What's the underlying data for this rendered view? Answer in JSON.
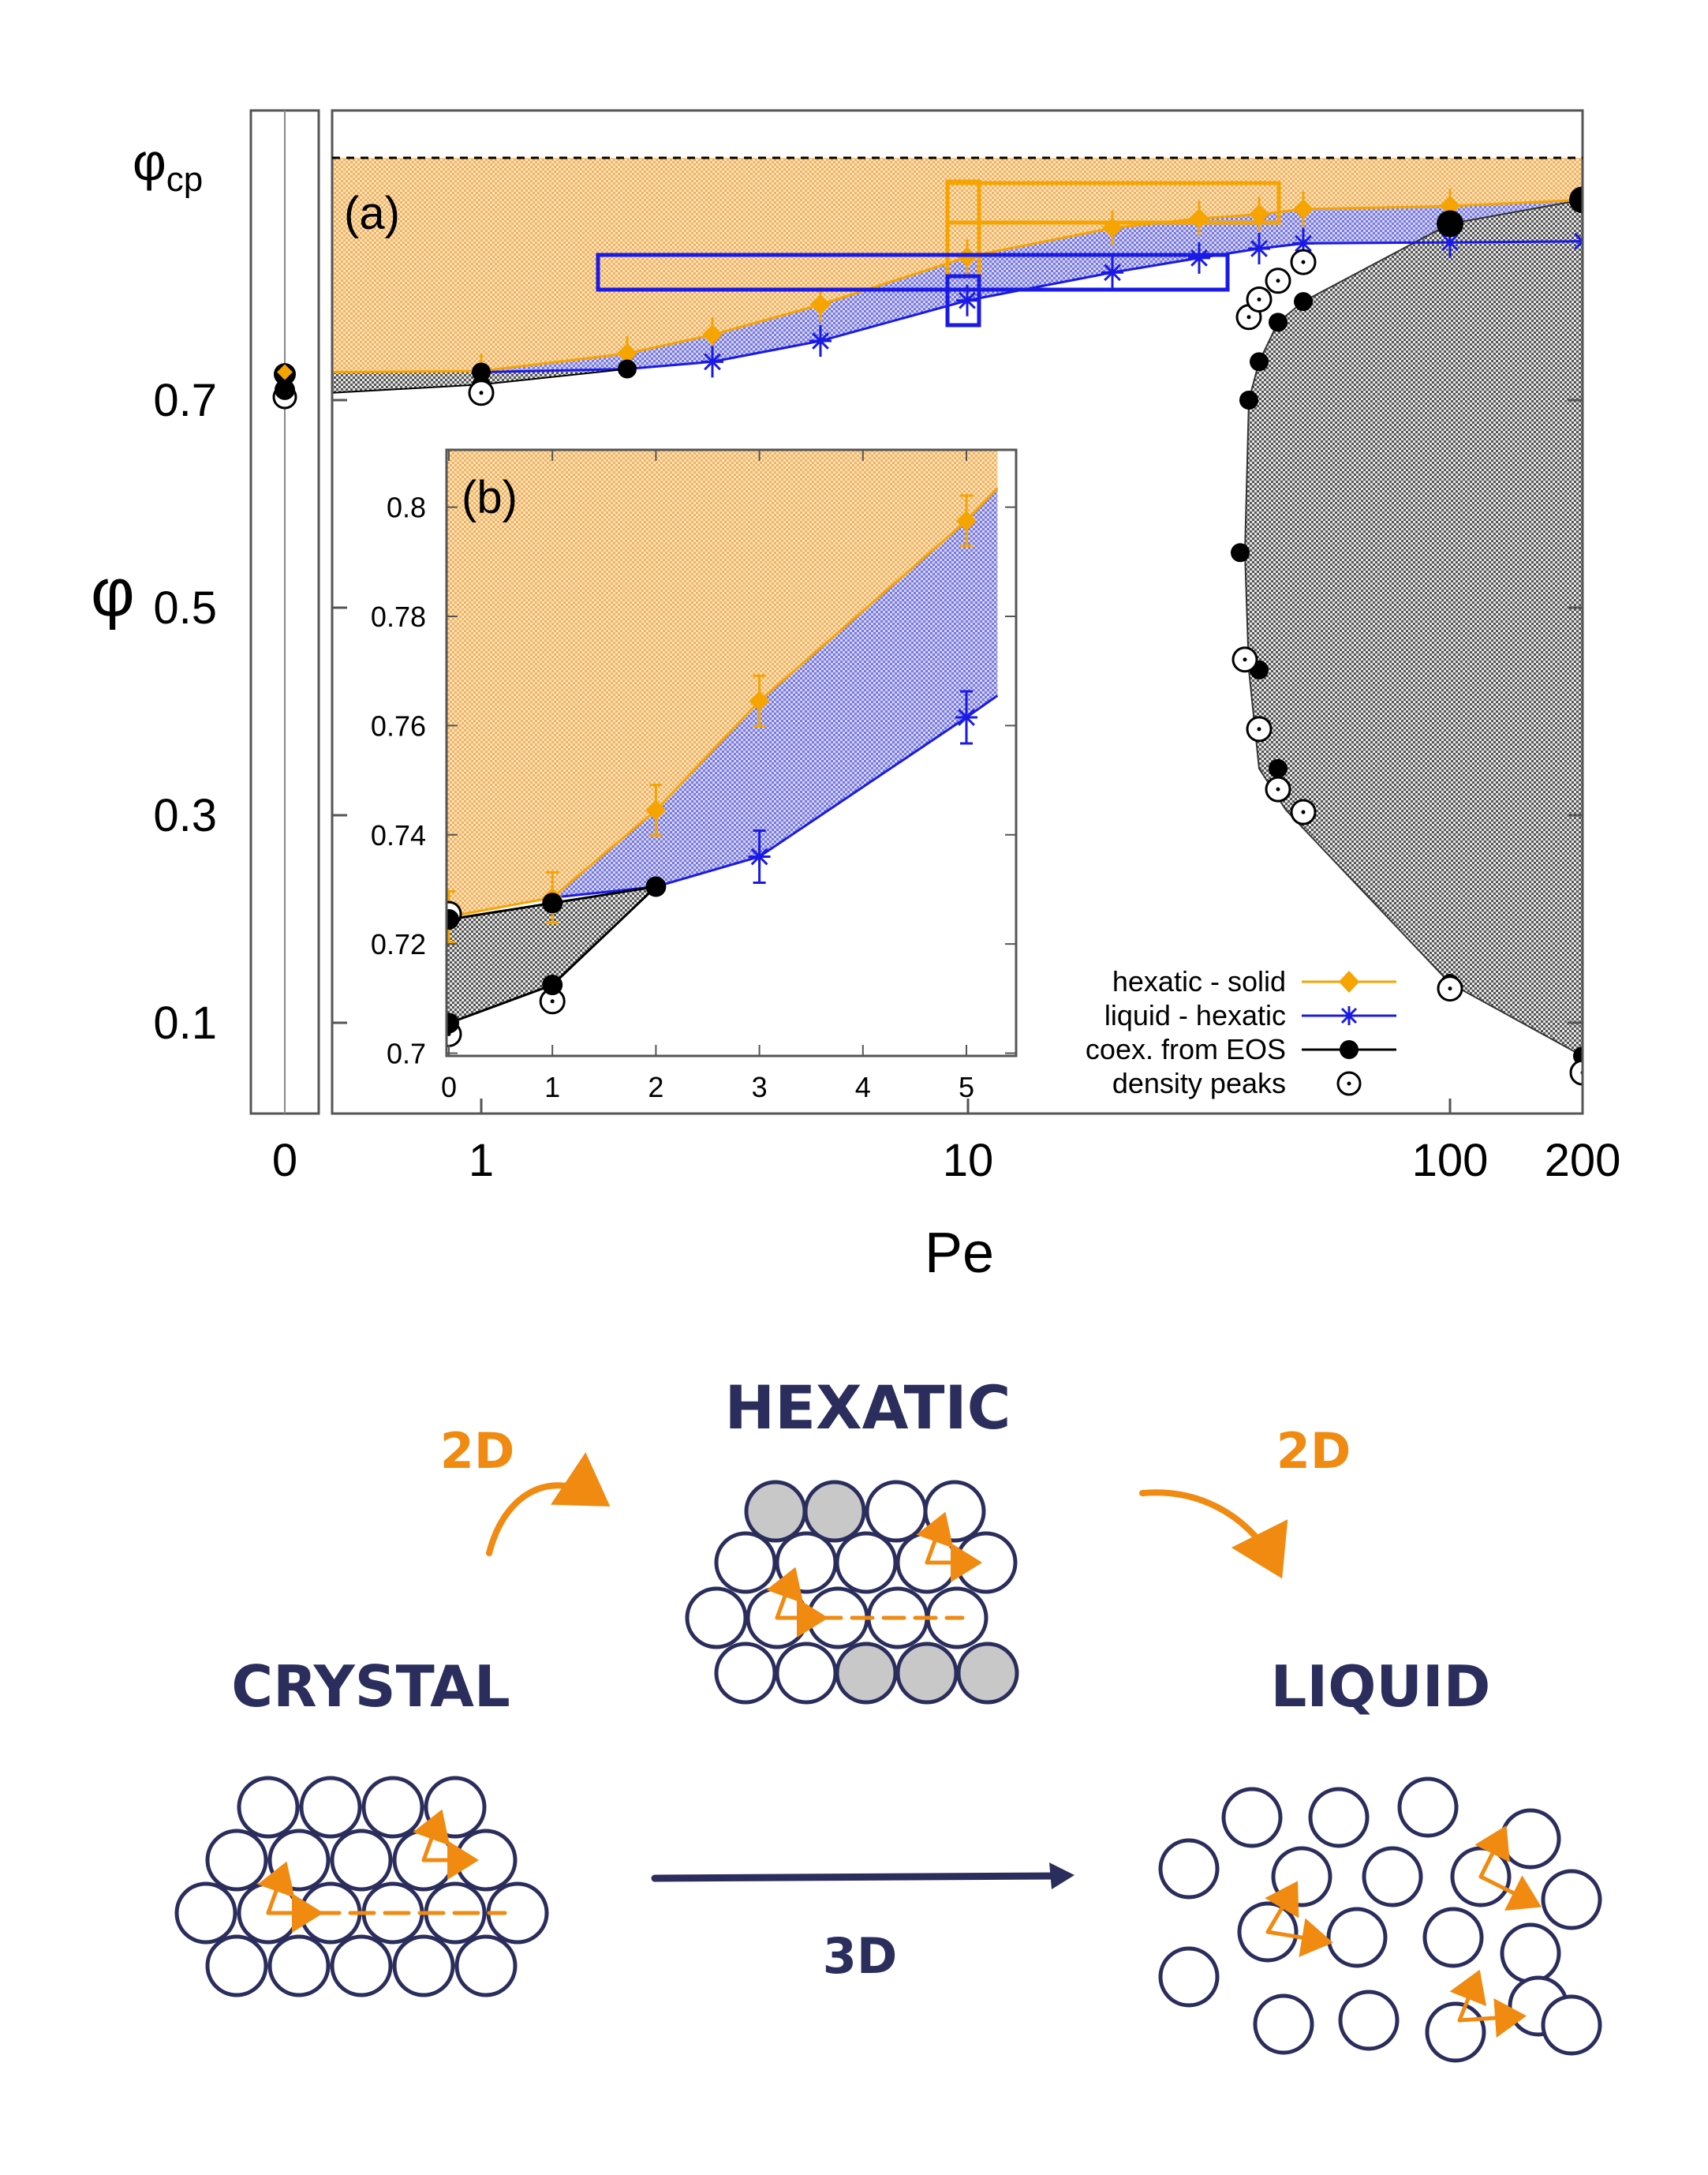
{
  "chart_data": [
    {
      "type": "scatter",
      "panel_label": "(a)",
      "xlabel": "Pe",
      "ylabel": "φ",
      "x_scale": "log (separate panel for Pe = 0)",
      "x_ticks": [
        "0",
        "1",
        "10",
        "100",
        "200"
      ],
      "y_ticks": [
        "0.1",
        "0.3",
        "0.5",
        "0.7"
      ],
      "y_top_label": "φcp",
      "phi_cp": 0.9069,
      "ylim": [
        0.0,
        0.93
      ],
      "grid": false,
      "series": [
        {
          "name": "hexatic - solid",
          "color": "#f5a400",
          "marker": "diamond",
          "x": [
            0,
            1,
            2,
            3,
            5,
            10,
            20,
            30,
            40,
            50,
            100,
            200
          ],
          "y": [
            0.725,
            0.728,
            0.745,
            0.763,
            0.792,
            0.838,
            0.866,
            0.875,
            0.879,
            0.884,
            0.887,
            0.893
          ]
        },
        {
          "name": "liquid - hexatic",
          "color": "#1a1ae6",
          "marker": "star",
          "x": [
            3,
            5,
            10,
            20,
            30,
            40,
            50,
            100,
            200
          ],
          "y": [
            0.737,
            0.757,
            0.796,
            0.823,
            0.837,
            0.846,
            0.851,
            0.852,
            0.853
          ]
        },
        {
          "name": "coex. from EOS",
          "color": "#000000",
          "marker": "filled-circle",
          "x": [
            0,
            0,
            1,
            1,
            2,
            40,
            38,
            37,
            37,
            40,
            40,
            45,
            50,
            100,
            200,
            40,
            38,
            40,
            45,
            50,
            100,
            200
          ],
          "y": [
            0.725,
            0.705,
            0.727,
            0.714,
            0.73,
            0.737,
            0.7,
            0.553,
            0.44,
            0.345,
            0.305,
            0.775,
            0.795,
            0.87,
            0.893,
            0.737,
            0.7,
            0.44,
            0.345,
            0.305,
            0.138,
            0.068
          ]
        },
        {
          "name": "density peaks",
          "color": "#000000",
          "marker": "open-circle-dot",
          "x": [
            0,
            1,
            37,
            38,
            38,
            40,
            45,
            45,
            50,
            100,
            200
          ],
          "y": [
            0.703,
            0.707,
            0.778,
            0.795,
            0.815,
            0.45,
            0.383,
            0.325,
            0.303,
            0.133,
            0.052
          ]
        }
      ],
      "regions": [
        {
          "name": "hexatic - solid coexistence",
          "color": "#f5b560"
        },
        {
          "name": "liquid - hexatic coexistence",
          "color": "#8080e8"
        },
        {
          "name": "coexistence from EOS (MIPS)",
          "color": "#777777"
        }
      ]
    },
    {
      "type": "scatter",
      "panel_label": "(b)",
      "x_ticks": [
        "0",
        "1",
        "2",
        "3",
        "4",
        "5"
      ],
      "y_ticks": [
        "0.7",
        "0.72",
        "0.74",
        "0.76",
        "0.78",
        "0.8"
      ],
      "xlim": [
        -0.2,
        5.1
      ],
      "ylim": [
        0.6995,
        0.8105
      ],
      "series": [
        {
          "name": "hexatic - solid",
          "x": [
            0,
            1,
            2,
            3,
            5
          ],
          "y": [
            0.725,
            0.7285,
            0.7445,
            0.7645,
            0.7975
          ]
        },
        {
          "name": "liquid - hexatic",
          "x": [
            3,
            5
          ],
          "y": [
            0.736,
            0.7615
          ]
        },
        {
          "name": "coex. from EOS",
          "x": [
            0,
            0,
            1,
            1,
            2
          ],
          "y": [
            0.7245,
            0.7055,
            0.7275,
            0.7125,
            0.7305
          ]
        },
        {
          "name": "density peaks",
          "x": [
            0,
            0,
            1
          ],
          "y": [
            0.7255,
            0.7035,
            0.7095
          ]
        }
      ],
      "legend": [
        "hexatic - solid",
        "liquid - hexatic",
        "coex. from EOS",
        "density peaks"
      ],
      "legend_position": "bottom-right"
    }
  ],
  "diagram": {
    "labels": {
      "crystal": "CRYSTAL",
      "hexatic": "HEXATIC",
      "liquid": "LIQUID"
    },
    "arrows": {
      "left": "2D",
      "right": "2D",
      "bottom": "3D"
    },
    "colors": {
      "ink": "#2b2d5c",
      "accent": "#f08a10",
      "particle_fill": "#c8c8c8"
    }
  }
}
